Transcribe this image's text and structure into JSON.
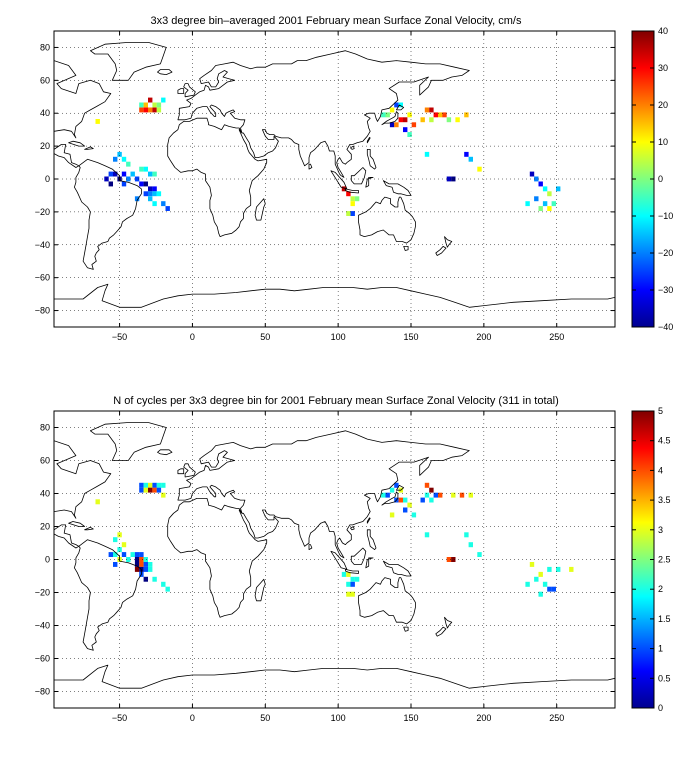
{
  "chart_data": [
    {
      "type": "heatmap",
      "title": "3x3 degree bin–averaged 2001 February mean Surface Zonal Velocity, cm/s",
      "xlim": [
        -95,
        290
      ],
      "ylim": [
        -90,
        90
      ],
      "xticks": [
        -50,
        0,
        50,
        100,
        150,
        200,
        250
      ],
      "yticks": [
        80,
        60,
        40,
        20,
        0,
        -20,
        -40,
        -60,
        -80
      ],
      "grid": true,
      "colorbar": {
        "min": -40,
        "max": 40,
        "ticks": [
          40,
          30,
          20,
          10,
          0,
          -10,
          -20,
          -30,
          -40
        ],
        "colormap": "jet"
      },
      "bin_size_deg": 3,
      "cells": [
        [
          -65,
          35,
          10
        ],
        [
          -35,
          45,
          -5
        ],
        [
          -32,
          45,
          15
        ],
        [
          -29,
          48,
          35
        ],
        [
          -26,
          45,
          5
        ],
        [
          -23,
          45,
          0
        ],
        [
          -20,
          48,
          -10
        ],
        [
          -35,
          42,
          25
        ],
        [
          -32,
          42,
          30
        ],
        [
          -29,
          42,
          20
        ],
        [
          -26,
          42,
          35
        ],
        [
          -23,
          42,
          5
        ],
        [
          -50,
          15,
          -15
        ],
        [
          -53,
          12,
          -20
        ],
        [
          -47,
          12,
          -10
        ],
        [
          -44,
          9,
          -5
        ],
        [
          -56,
          3,
          -25
        ],
        [
          -53,
          3,
          -35
        ],
        [
          -50,
          0,
          -40
        ],
        [
          -47,
          3,
          -30
        ],
        [
          -44,
          0,
          -20
        ],
        [
          -41,
          3,
          -15
        ],
        [
          -38,
          0,
          -25
        ],
        [
          -35,
          6,
          -5
        ],
        [
          -32,
          6,
          -10
        ],
        [
          -29,
          3,
          -15
        ],
        [
          -26,
          3,
          -5
        ],
        [
          -59,
          0,
          -35
        ],
        [
          -56,
          -3,
          -40
        ],
        [
          -47,
          -3,
          -25
        ],
        [
          -35,
          -3,
          -30
        ],
        [
          -32,
          -3,
          -40
        ],
        [
          -29,
          -6,
          -35
        ],
        [
          -26,
          -6,
          -30
        ],
        [
          -32,
          -9,
          -25
        ],
        [
          -29,
          -9,
          -20
        ],
        [
          -26,
          -9,
          -15
        ],
        [
          -23,
          -9,
          -10
        ],
        [
          -38,
          -12,
          -20
        ],
        [
          -29,
          -12,
          -15
        ],
        [
          -26,
          -15,
          -10
        ],
        [
          -20,
          -15,
          -20
        ],
        [
          -17,
          -18,
          -25
        ],
        [
          104,
          -6,
          35
        ],
        [
          107,
          -9,
          30
        ],
        [
          110,
          -12,
          5
        ],
        [
          110,
          -15,
          10
        ],
        [
          113,
          -12,
          0
        ],
        [
          107,
          -21,
          5
        ],
        [
          110,
          -21,
          -25
        ],
        [
          131,
          39,
          -5
        ],
        [
          134,
          39,
          0
        ],
        [
          137,
          42,
          10
        ],
        [
          140,
          45,
          -25
        ],
        [
          143,
          45,
          -10
        ],
        [
          137,
          33,
          -35
        ],
        [
          140,
          33,
          20
        ],
        [
          143,
          36,
          30
        ],
        [
          146,
          36,
          35
        ],
        [
          149,
          39,
          10
        ],
        [
          146,
          30,
          -30
        ],
        [
          152,
          33,
          25
        ],
        [
          149,
          27,
          -5
        ],
        [
          161,
          42,
          20
        ],
        [
          164,
          42,
          35
        ],
        [
          167,
          39,
          30
        ],
        [
          170,
          39,
          15
        ],
        [
          173,
          39,
          25
        ],
        [
          164,
          36,
          5
        ],
        [
          158,
          36,
          15
        ],
        [
          176,
          36,
          0
        ],
        [
          182,
          36,
          10
        ],
        [
          188,
          39,
          15
        ],
        [
          161,
          15,
          -10
        ],
        [
          188,
          15,
          -30
        ],
        [
          191,
          12,
          -15
        ],
        [
          197,
          6,
          10
        ],
        [
          176,
          0,
          -35
        ],
        [
          179,
          0,
          -40
        ],
        [
          233,
          3,
          -35
        ],
        [
          236,
          0,
          -20
        ],
        [
          239,
          -3,
          -30
        ],
        [
          242,
          -6,
          -10
        ],
        [
          245,
          -9,
          5
        ],
        [
          251,
          -6,
          -15
        ],
        [
          230,
          -15,
          -10
        ],
        [
          236,
          -12,
          -20
        ],
        [
          242,
          -15,
          -15
        ],
        [
          245,
          -18,
          10
        ],
        [
          248,
          -15,
          -5
        ],
        [
          239,
          -18,
          0
        ]
      ]
    },
    {
      "type": "heatmap",
      "title": "N of cycles per 3x3 degree bin for 2001 February mean Surface Zonal Velocity (311 in total)",
      "xlim": [
        -95,
        290
      ],
      "ylim": [
        -90,
        90
      ],
      "xticks": [
        -50,
        0,
        50,
        100,
        150,
        200,
        250
      ],
      "yticks": [
        80,
        60,
        40,
        20,
        0,
        -20,
        -40,
        -60,
        -80
      ],
      "grid": true,
      "colorbar": {
        "min": 0,
        "max": 5,
        "ticks": [
          5,
          4.5,
          4,
          3.5,
          3,
          2.5,
          2,
          1.5,
          1,
          0.5,
          0
        ],
        "colormap": "jet"
      },
      "bin_size_deg": 3,
      "cells": [
        [
          -65,
          35,
          3
        ],
        [
          -35,
          45,
          1
        ],
        [
          -32,
          45,
          2
        ],
        [
          -29,
          45,
          3
        ],
        [
          -26,
          45,
          1
        ],
        [
          -23,
          45,
          2
        ],
        [
          -20,
          45,
          2
        ],
        [
          -35,
          42,
          1
        ],
        [
          -32,
          42,
          3
        ],
        [
          -29,
          42,
          5
        ],
        [
          -26,
          42,
          4
        ],
        [
          -23,
          42,
          1
        ],
        [
          -20,
          39,
          3
        ],
        [
          -50,
          15,
          3
        ],
        [
          -53,
          12,
          2
        ],
        [
          -47,
          9,
          3
        ],
        [
          -50,
          6,
          2
        ],
        [
          -56,
          3,
          1
        ],
        [
          -53,
          3,
          2
        ],
        [
          -47,
          3,
          1
        ],
        [
          -41,
          3,
          2
        ],
        [
          -38,
          3,
          1
        ],
        [
          -35,
          3,
          1
        ],
        [
          -50,
          0,
          3
        ],
        [
          -44,
          0,
          2
        ],
        [
          -38,
          0,
          0
        ],
        [
          -35,
          0,
          4
        ],
        [
          -32,
          0,
          2
        ],
        [
          -53,
          -3,
          1
        ],
        [
          -38,
          -3,
          0
        ],
        [
          -35,
          -3,
          4
        ],
        [
          -32,
          -3,
          1
        ],
        [
          -29,
          -3,
          2
        ],
        [
          -38,
          -6,
          5
        ],
        [
          -35,
          -6,
          0
        ],
        [
          -32,
          -6,
          1
        ],
        [
          -29,
          -6,
          2
        ],
        [
          -35,
          -9,
          1
        ],
        [
          -32,
          -12,
          0
        ],
        [
          -26,
          -12,
          2
        ],
        [
          -20,
          -15,
          2
        ],
        [
          -17,
          -18,
          2
        ],
        [
          104,
          -9,
          2
        ],
        [
          107,
          -9,
          3
        ],
        [
          110,
          -12,
          2
        ],
        [
          107,
          -15,
          2
        ],
        [
          110,
          -15,
          1
        ],
        [
          113,
          -12,
          2
        ],
        [
          107,
          -21,
          3
        ],
        [
          110,
          -21,
          3
        ],
        [
          131,
          39,
          2
        ],
        [
          134,
          39,
          1
        ],
        [
          137,
          42,
          2
        ],
        [
          140,
          45,
          1
        ],
        [
          143,
          42,
          3
        ],
        [
          140,
          36,
          1
        ],
        [
          143,
          36,
          4
        ],
        [
          146,
          36,
          2
        ],
        [
          149,
          33,
          3
        ],
        [
          146,
          30,
          1
        ],
        [
          137,
          27,
          3
        ],
        [
          152,
          27,
          2
        ],
        [
          161,
          45,
          4
        ],
        [
          164,
          42,
          5
        ],
        [
          167,
          39,
          1
        ],
        [
          170,
          39,
          4
        ],
        [
          161,
          39,
          2
        ],
        [
          164,
          36,
          2
        ],
        [
          158,
          36,
          1
        ],
        [
          179,
          39,
          3
        ],
        [
          185,
          39,
          4
        ],
        [
          191,
          39,
          3
        ],
        [
          161,
          15,
          2
        ],
        [
          188,
          15,
          2
        ],
        [
          191,
          9,
          2
        ],
        [
          197,
          3,
          2
        ],
        [
          176,
          0,
          4
        ],
        [
          179,
          0,
          5
        ],
        [
          233,
          -3,
          3
        ],
        [
          239,
          -9,
          3
        ],
        [
          245,
          -6,
          2
        ],
        [
          251,
          -6,
          2
        ],
        [
          260,
          -6,
          3
        ],
        [
          230,
          -15,
          2
        ],
        [
          236,
          -12,
          2
        ],
        [
          242,
          -15,
          2
        ],
        [
          245,
          -18,
          1
        ],
        [
          248,
          -18,
          1
        ],
        [
          239,
          -21,
          2
        ]
      ]
    }
  ]
}
